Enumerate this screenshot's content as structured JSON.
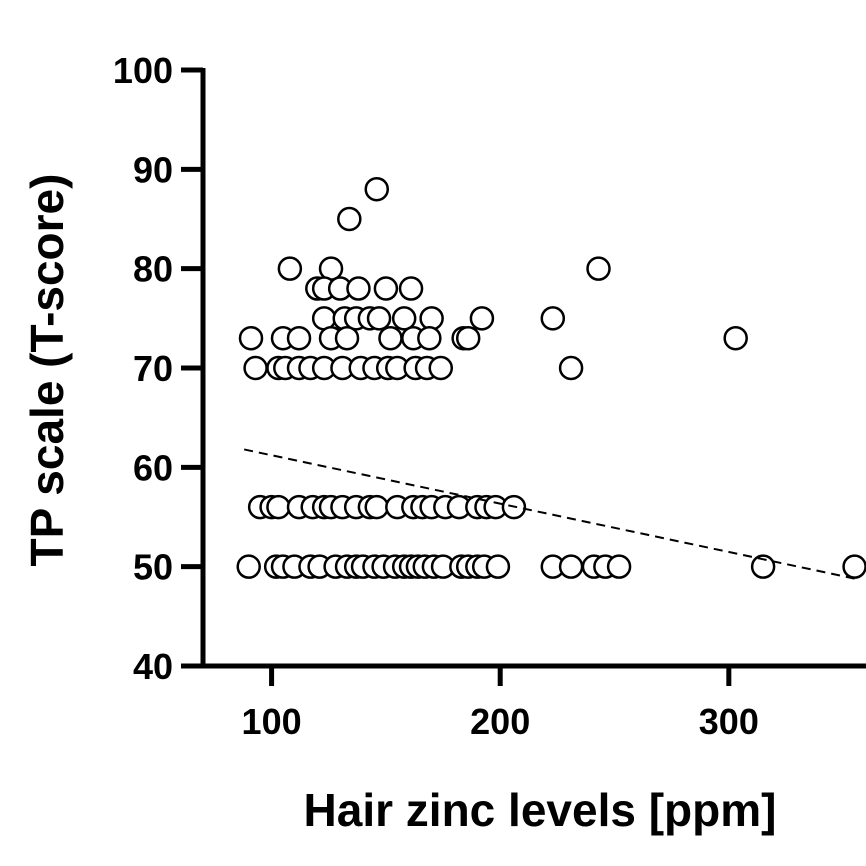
{
  "chart_data": {
    "type": "scatter",
    "xlabel": "Hair zinc levels [ppm]",
    "ylabel": "TP scale (T-score)",
    "xlim": [
      70,
      360
    ],
    "ylim": [
      40,
      100
    ],
    "xticks": [
      100,
      200,
      300
    ],
    "yticks": [
      40,
      50,
      60,
      70,
      80,
      90,
      100
    ],
    "grid": false,
    "trendline": {
      "style": "dashed",
      "x": [
        88,
        355
      ],
      "y": [
        61.8,
        48.8
      ]
    },
    "points": [
      [
        146,
        88
      ],
      [
        134,
        85
      ],
      [
        108,
        80
      ],
      [
        126,
        80
      ],
      [
        243,
        80
      ],
      [
        120,
        78
      ],
      [
        123,
        78
      ],
      [
        130,
        78
      ],
      [
        138,
        78
      ],
      [
        150,
        78
      ],
      [
        161,
        78
      ],
      [
        123,
        75
      ],
      [
        132,
        75
      ],
      [
        137,
        75
      ],
      [
        143,
        75
      ],
      [
        147,
        75
      ],
      [
        158,
        75
      ],
      [
        170,
        75
      ],
      [
        192,
        75
      ],
      [
        223,
        75
      ],
      [
        91,
        73
      ],
      [
        105,
        73
      ],
      [
        112,
        73
      ],
      [
        126,
        73
      ],
      [
        133,
        73
      ],
      [
        152,
        73
      ],
      [
        162,
        73
      ],
      [
        169,
        73
      ],
      [
        184,
        73
      ],
      [
        186,
        73
      ],
      [
        303,
        73
      ],
      [
        93,
        70
      ],
      [
        103,
        70
      ],
      [
        106,
        70
      ],
      [
        112,
        70
      ],
      [
        117,
        70
      ],
      [
        123,
        70
      ],
      [
        131,
        70
      ],
      [
        139,
        70
      ],
      [
        145,
        70
      ],
      [
        151,
        70
      ],
      [
        155,
        70
      ],
      [
        163,
        70
      ],
      [
        168,
        70
      ],
      [
        174,
        70
      ],
      [
        231,
        70
      ],
      [
        95,
        56
      ],
      [
        100,
        56
      ],
      [
        103,
        56
      ],
      [
        112,
        56
      ],
      [
        118,
        56
      ],
      [
        123,
        56
      ],
      [
        126,
        56
      ],
      [
        131,
        56
      ],
      [
        137,
        56
      ],
      [
        143,
        56
      ],
      [
        146,
        56
      ],
      [
        155,
        56
      ],
      [
        162,
        56
      ],
      [
        166,
        56
      ],
      [
        170,
        56
      ],
      [
        176,
        56
      ],
      [
        182,
        56
      ],
      [
        190,
        56
      ],
      [
        194,
        56
      ],
      [
        198,
        56
      ],
      [
        206,
        56
      ],
      [
        90,
        50
      ],
      [
        102,
        50
      ],
      [
        105,
        50
      ],
      [
        110,
        50
      ],
      [
        117,
        50
      ],
      [
        121,
        50
      ],
      [
        128,
        50
      ],
      [
        133,
        50
      ],
      [
        137,
        50
      ],
      [
        140,
        50
      ],
      [
        145,
        50
      ],
      [
        149,
        50
      ],
      [
        154,
        50
      ],
      [
        158,
        50
      ],
      [
        161,
        50
      ],
      [
        164,
        50
      ],
      [
        167,
        50
      ],
      [
        171,
        50
      ],
      [
        175,
        50
      ],
      [
        183,
        50
      ],
      [
        186,
        50
      ],
      [
        190,
        50
      ],
      [
        193,
        50
      ],
      [
        199,
        50
      ],
      [
        223,
        50
      ],
      [
        231,
        50
      ],
      [
        241,
        50
      ],
      [
        246,
        50
      ],
      [
        252,
        50
      ],
      [
        315,
        50
      ],
      [
        355,
        50
      ]
    ]
  }
}
